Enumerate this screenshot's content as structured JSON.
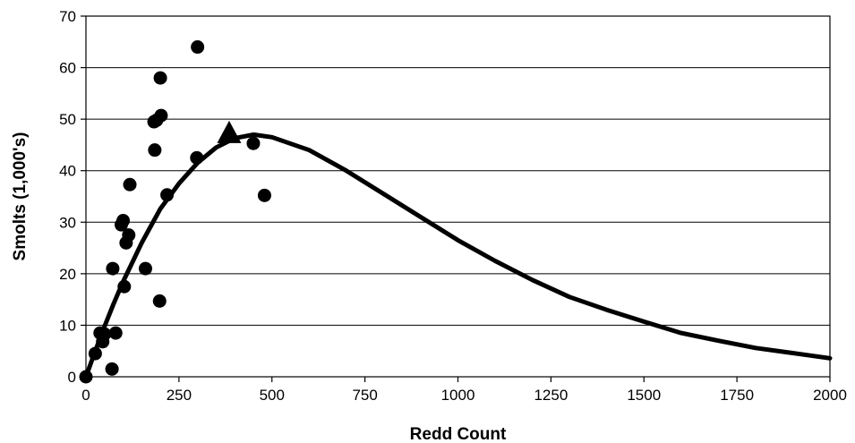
{
  "chart_data": {
    "type": "scatter",
    "title": "",
    "xlabel": "Redd Count",
    "ylabel": "Smolts (1,000's)",
    "xlim": [
      0,
      2000
    ],
    "ylim": [
      0,
      70
    ],
    "x_ticks": [
      0,
      250,
      500,
      750,
      1000,
      1250,
      1500,
      1750,
      2000
    ],
    "y_ticks": [
      0,
      10,
      20,
      30,
      40,
      50,
      60,
      70
    ],
    "grid": "horizontal",
    "legend": "none",
    "colors": {
      "marks": "#000000",
      "grid": "#000000",
      "background": "#ffffff"
    },
    "series": [
      {
        "kind": "points",
        "marker": "circle",
        "points": [
          [
            0,
            0
          ],
          [
            25,
            4.5
          ],
          [
            38,
            8.5
          ],
          [
            45,
            6.8
          ],
          [
            50,
            8.3
          ],
          [
            70,
            1.5
          ],
          [
            72,
            21
          ],
          [
            80,
            8.5
          ],
          [
            95,
            29.5
          ],
          [
            100,
            30.3
          ],
          [
            103,
            17.5
          ],
          [
            108,
            26
          ],
          [
            115,
            27.5
          ],
          [
            118,
            37.3
          ],
          [
            160,
            21
          ],
          [
            183,
            49.5
          ],
          [
            185,
            44
          ],
          [
            190,
            49.8
          ],
          [
            198,
            14.7
          ],
          [
            200,
            58
          ],
          [
            202,
            50.7
          ],
          [
            218,
            35.3
          ],
          [
            298,
            42.5
          ],
          [
            300,
            64
          ],
          [
            450,
            45.3
          ],
          [
            480,
            35.2
          ]
        ]
      },
      {
        "kind": "curve",
        "points": [
          [
            0,
            0
          ],
          [
            25,
            5
          ],
          [
            50,
            9.8
          ],
          [
            75,
            14.3
          ],
          [
            100,
            18.5
          ],
          [
            150,
            26
          ],
          [
            200,
            32.6
          ],
          [
            250,
            37.5
          ],
          [
            300,
            41.5
          ],
          [
            350,
            44.5
          ],
          [
            400,
            46.3
          ],
          [
            450,
            47
          ],
          [
            500,
            46.5
          ],
          [
            600,
            44
          ],
          [
            700,
            40
          ],
          [
            800,
            35.5
          ],
          [
            900,
            31
          ],
          [
            1000,
            26.5
          ],
          [
            1100,
            22.5
          ],
          [
            1200,
            18.8
          ],
          [
            1300,
            15.5
          ],
          [
            1400,
            13
          ],
          [
            1500,
            10.7
          ],
          [
            1600,
            8.5
          ],
          [
            1700,
            7
          ],
          [
            1800,
            5.6
          ],
          [
            1900,
            4.6
          ],
          [
            2000,
            3.6
          ]
        ]
      },
      {
        "kind": "points",
        "marker": "triangle",
        "points": [
          [
            385,
            47
          ]
        ]
      }
    ]
  }
}
